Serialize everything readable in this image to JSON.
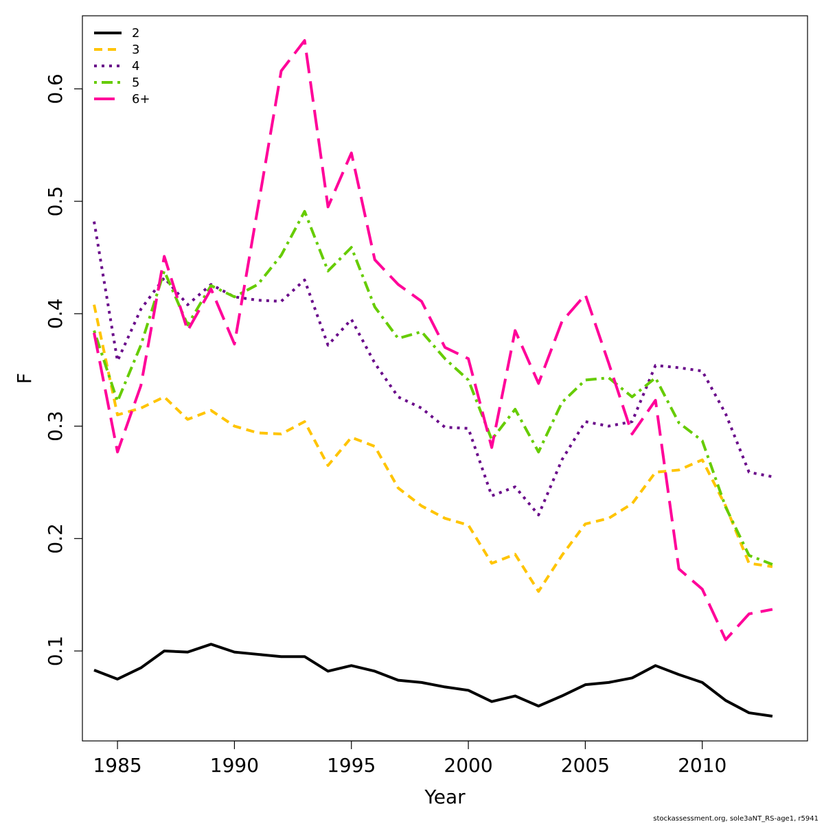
{
  "chart_data": {
    "type": "line",
    "xlabel": "Year",
    "ylabel": "F",
    "xlim": [
      1983.5,
      2014.5
    ],
    "ylim": [
      0.02,
      0.665
    ],
    "x_ticks": [
      1985,
      1990,
      1995,
      2000,
      2005,
      2010
    ],
    "x_tick_labels": [
      "1985",
      "1990",
      "1995",
      "2000",
      "2005",
      "2010"
    ],
    "y_ticks": [
      0.1,
      0.2,
      0.3,
      0.4,
      0.5,
      0.6
    ],
    "y_tick_labels": [
      "0.1",
      "0.2",
      "0.3",
      "0.4",
      "0.5",
      "0.6"
    ],
    "grid": false,
    "legend_position": "top-left",
    "x": [
      1984,
      1985,
      1986,
      1987,
      1988,
      1989,
      1990,
      1991,
      1992,
      1993,
      1994,
      1995,
      1996,
      1997,
      1998,
      1999,
      2000,
      2001,
      2002,
      2003,
      2004,
      2005,
      2006,
      2007,
      2008,
      2009,
      2010,
      2011,
      2012,
      2013
    ],
    "series": [
      {
        "name": "2",
        "color": "#000000",
        "dash": "solid",
        "values": [
          0.083,
          0.075,
          0.085,
          0.1,
          0.099,
          0.106,
          0.099,
          0.097,
          0.095,
          0.095,
          0.082,
          0.087,
          0.082,
          0.074,
          0.072,
          0.068,
          0.065,
          0.055,
          0.06,
          0.051,
          0.06,
          0.07,
          0.072,
          0.076,
          0.087,
          0.079,
          0.072,
          0.056,
          0.045,
          0.042
        ]
      },
      {
        "name": "3",
        "color": "#FFC400",
        "dash": "short",
        "values": [
          0.408,
          0.31,
          0.316,
          0.326,
          0.306,
          0.314,
          0.3,
          0.294,
          0.293,
          0.304,
          0.265,
          0.29,
          0.282,
          0.245,
          0.229,
          0.218,
          0.212,
          0.178,
          0.186,
          0.153,
          0.185,
          0.213,
          0.218,
          0.231,
          0.259,
          0.261,
          0.27,
          0.229,
          0.178,
          0.175
        ]
      },
      {
        "name": "4",
        "color": "#6A0A8A",
        "dash": "dotted",
        "values": [
          0.482,
          0.358,
          0.404,
          0.432,
          0.408,
          0.426,
          0.415,
          0.412,
          0.411,
          0.43,
          0.372,
          0.395,
          0.356,
          0.326,
          0.316,
          0.299,
          0.298,
          0.238,
          0.246,
          0.221,
          0.27,
          0.304,
          0.3,
          0.304,
          0.354,
          0.352,
          0.349,
          0.311,
          0.259,
          0.255
        ]
      },
      {
        "name": "5",
        "color": "#66CC00",
        "dash": "dotdash",
        "values": [
          0.385,
          0.322,
          0.372,
          0.438,
          0.39,
          0.425,
          0.415,
          0.426,
          0.452,
          0.491,
          0.438,
          0.459,
          0.406,
          0.378,
          0.384,
          0.36,
          0.341,
          0.288,
          0.315,
          0.277,
          0.321,
          0.341,
          0.343,
          0.326,
          0.343,
          0.303,
          0.287,
          0.228,
          0.185,
          0.177
        ]
      },
      {
        "name": "6+",
        "color": "#FF0099",
        "dash": "long",
        "values": [
          0.383,
          0.277,
          0.336,
          0.451,
          0.385,
          0.422,
          0.373,
          0.494,
          0.616,
          0.643,
          0.495,
          0.543,
          0.448,
          0.426,
          0.411,
          0.37,
          0.36,
          0.281,
          0.385,
          0.338,
          0.393,
          0.417,
          0.356,
          0.293,
          0.323,
          0.173,
          0.155,
          0.11,
          0.133,
          0.137
        ]
      }
    ]
  },
  "credit": "stockassessment.org, sole3aNT_RS-age1, r5941"
}
